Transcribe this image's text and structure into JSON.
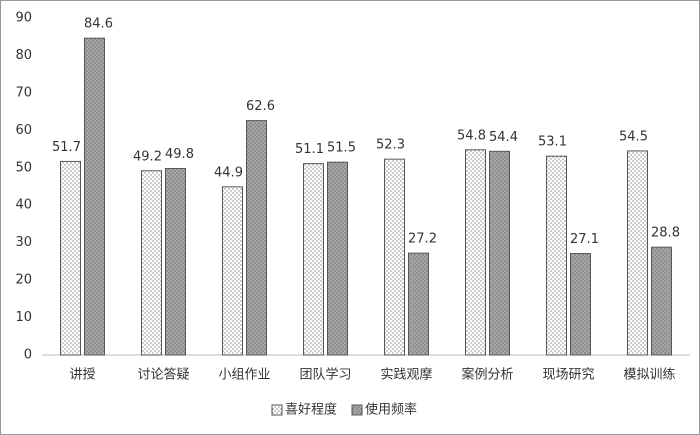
{
  "chart_data": {
    "type": "bar",
    "categories": [
      "讲授",
      "讨论答疑",
      "小组作业",
      "团队学习",
      "实践观摩",
      "案例分析",
      "现场研究",
      "模拟训练"
    ],
    "series": [
      {
        "name": "喜好程度",
        "color": "#ffffff",
        "values": [
          51.7,
          49.2,
          44.9,
          51.1,
          52.3,
          54.8,
          53.1,
          54.5
        ]
      },
      {
        "name": "使用频率",
        "color": "#a6a6a6",
        "values": [
          84.6,
          49.8,
          62.6,
          51.5,
          27.2,
          54.4,
          27.1,
          28.8
        ]
      }
    ],
    "ylim": [
      0,
      90
    ],
    "yticks": [
      0,
      10,
      20,
      30,
      40,
      50,
      60,
      70,
      80,
      90
    ],
    "grid": false,
    "legend": "bottom"
  }
}
